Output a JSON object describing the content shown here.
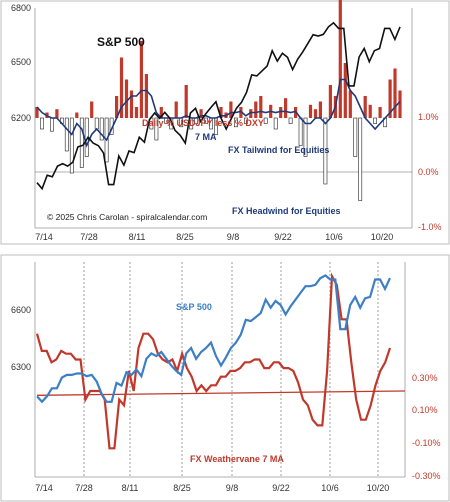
{
  "chart_data": [
    {
      "type": "line",
      "title": "S&P 500",
      "x_tick_labels": [
        "7/14",
        "7/28",
        "8/11",
        "8/25",
        "9/8",
        "9/22",
        "10/6",
        "10/20"
      ],
      "y_left_ticks": [
        "6800",
        "6500",
        "6200"
      ],
      "y_right_ticks": [
        "1.0%",
        "0.0%",
        "-1.0%"
      ],
      "ylim_left": [
        6100,
        6800
      ],
      "ylim_right": [
        -1.0,
        1.0
      ],
      "credit": "© 2025 Chris Carolan - spiralcalendar.com",
      "annotations": {
        "bars": "Daily % USDJPY less % DXY",
        "ma": "7 MA",
        "tailwind": "FX Tailwind for Equities",
        "headwind": "FX Headwind for Equities"
      },
      "series": [
        {
          "name": "S&P 500",
          "values": [
            6244,
            6225,
            6268,
            6263,
            6297,
            6305,
            6297,
            6309,
            6358,
            6363,
            6389,
            6370,
            6362,
            6339,
            6238,
            6238,
            6329,
            6300,
            6345,
            6340,
            6389,
            6373,
            6445,
            6466,
            6449,
            6468,
            6449,
            6411,
            6395,
            6370,
            6466,
            6481,
            6439,
            6463,
            6483,
            6502,
            6449,
            6415,
            6448,
            6481,
            6500,
            6532,
            6587,
            6584,
            6600,
            6615,
            6664,
            6631,
            6656,
            6643,
            6604,
            6637,
            6661,
            6688,
            6715,
            6711,
            6716,
            6740,
            6753,
            6735,
            6735,
            6552,
            6552,
            6644,
            6671,
            6629,
            6664,
            6671,
            6735,
            6735,
            6700,
            6740
          ]
        },
        {
          "name": "Daily % USDJPY less % DXY",
          "values": [
            0.1,
            -0.1,
            0.05,
            -0.12,
            0.08,
            -0.05,
            -0.3,
            -0.5,
            0.05,
            -0.45,
            -0.35,
            0.15,
            -0.1,
            -0.2,
            -0.4,
            -0.15,
            0.2,
            0.55,
            0.35,
            0.25,
            0.1,
            0.7,
            0.4,
            -0.1,
            -0.2,
            0.1,
            -0.05,
            -0.1,
            0.15,
            -0.08,
            0.3,
            -0.1,
            -0.05,
            0.08,
            -0.05,
            -0.1,
            -0.15,
            0.1,
            0.05,
            0.15,
            -0.08,
            0.1,
            -0.05,
            0.08,
            0.15,
            0.2,
            -0.05,
            0.12,
            -0.1,
            0.1,
            0.18,
            -0.05,
            0.1,
            -0.25,
            -0.35,
            0.12,
            0.08,
            0.15,
            -0.6,
            0.3,
            0.2,
            1.5,
            0.5,
            0.25,
            -0.35,
            -0.75,
            0.2,
            0.12,
            -0.05,
            0.1,
            -0.08,
            0.35,
            0.45,
            0.25
          ]
        },
        {
          "name": "7 MA",
          "values": [
            0.1,
            0.05,
            0.02,
            0.0,
            0.0,
            -0.05,
            -0.1,
            -0.15,
            -0.05,
            -0.1,
            -0.25,
            -0.15,
            -0.1,
            -0.15,
            -0.2,
            -0.1,
            0.0,
            0.1,
            0.15,
            0.2,
            0.2,
            0.25,
            0.25,
            0.2,
            0.05,
            0.0,
            0.0,
            0.0,
            0.0,
            0.0,
            0.02,
            0.0,
            0.0,
            0.02,
            0.02,
            0.0,
            0.0,
            0.02,
            0.02,
            0.05,
            0.05,
            0.06,
            0.02,
            0.05,
            0.05,
            0.06,
            0.05,
            0.06,
            0.05,
            0.06,
            0.06,
            0.05,
            0.06,
            0.0,
            -0.05,
            -0.05,
            0.0,
            0.0,
            -0.05,
            0.0,
            0.1,
            0.35,
            0.35,
            0.25,
            0.2,
            0.1,
            0.0,
            -0.05,
            -0.1,
            -0.05,
            0.0,
            0.05,
            0.1,
            0.15
          ]
        }
      ]
    },
    {
      "type": "line",
      "title": "S&P 500",
      "x_tick_labels": [
        "7/14",
        "7/28",
        "8/11",
        "8/25",
        "9/8",
        "9/22",
        "10/6",
        "10/20"
      ],
      "y_left_ticks": [
        "6600",
        "6300"
      ],
      "y_right_ticks": [
        "0.30%",
        "0.10%",
        "-0.10%",
        "-0.30%"
      ],
      "ylim_left": [
        6000,
        6800
      ],
      "ylim_right": [
        -0.35,
        0.4
      ],
      "annotations": {
        "weathervane": "FX Weathervane 7 MA"
      },
      "series": [
        {
          "name": "S&P 500",
          "values": [
            6300,
            6280,
            6300,
            6330,
            6330,
            6370,
            6380,
            6380,
            6385,
            6385,
            6375,
            6380,
            6355,
            6310,
            6280,
            6280,
            6350,
            6340,
            6390,
            6380,
            6400,
            6375,
            6440,
            6460,
            6450,
            6465,
            6440,
            6415,
            6395,
            6380,
            6460,
            6480,
            6440,
            6465,
            6480,
            6500,
            6450,
            6415,
            6445,
            6480,
            6500,
            6530,
            6585,
            6580,
            6595,
            6610,
            6660,
            6630,
            6655,
            6640,
            6605,
            6635,
            6660,
            6685,
            6710,
            6710,
            6715,
            6740,
            6750,
            6735,
            6735,
            6550,
            6550,
            6640,
            6670,
            6630,
            6665,
            6670,
            6735,
            6735,
            6700,
            6740
          ]
        },
        {
          "name": "FX Weathervane 7 MA",
          "values": [
            0.15,
            0.09,
            0.09,
            0.05,
            0.06,
            0.09,
            0.08,
            0.08,
            0.06,
            0.06,
            -0.08,
            -0.05,
            -0.05,
            -0.05,
            -0.08,
            -0.25,
            -0.25,
            -0.08,
            -0.1,
            0.02,
            -0.05,
            0.1,
            0.15,
            0.15,
            0.13,
            0.08,
            0.06,
            0.05,
            0.06,
            0.02,
            0.08,
            0.03,
            0.0,
            -0.05,
            -0.03,
            -0.05,
            -0.03,
            -0.03,
            0.0,
            0.0,
            0.02,
            0.02,
            0.03,
            0.05,
            0.05,
            0.06,
            0.06,
            0.03,
            0.03,
            0.05,
            0.05,
            0.03,
            0.03,
            0.02,
            -0.02,
            -0.08,
            -0.1,
            -0.15,
            -0.17,
            -0.17,
            0.02,
            0.35,
            0.32,
            0.2,
            0.2,
            0.05,
            -0.08,
            -0.15,
            -0.15,
            -0.1,
            -0.03,
            0.02,
            0.05,
            0.1
          ]
        },
        {
          "name": "baseline",
          "values": [
            -0.065,
            -0.05
          ]
        }
      ]
    }
  ]
}
